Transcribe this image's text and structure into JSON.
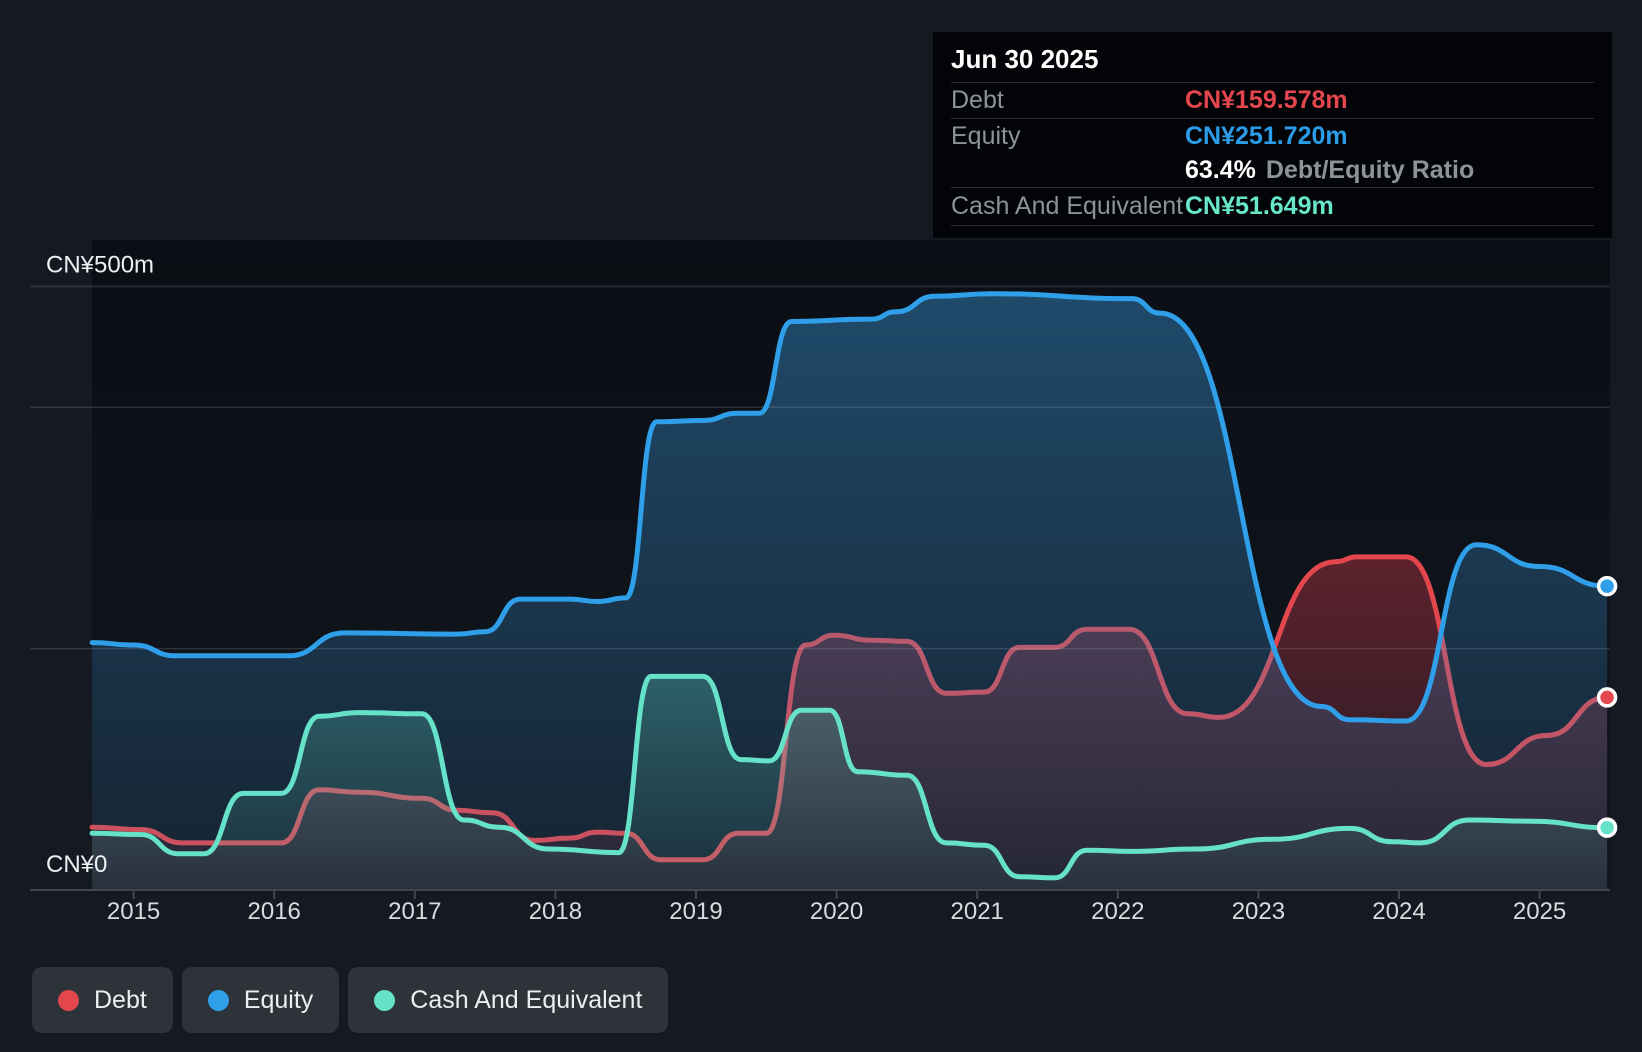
{
  "tooltip": {
    "date": "Jun 30 2025",
    "debt_label": "Debt",
    "debt_value": "CN¥159.578m",
    "equity_label": "Equity",
    "equity_value": "CN¥251.720m",
    "ratio_value": "63.4%",
    "ratio_label": "Debt/Equity Ratio",
    "cash_label": "Cash And Equivalent",
    "cash_value": "CN¥51.649m"
  },
  "legend": {
    "items": [
      {
        "name": "debt",
        "label": "Debt",
        "color": "#e3474d"
      },
      {
        "name": "equity",
        "label": "Equity",
        "color": "#2e9fe8"
      },
      {
        "name": "cash",
        "label": "Cash And Equivalent",
        "color": "#66e2c8"
      }
    ]
  },
  "chart_data": {
    "type": "area",
    "currency_unit": "CN¥ millions",
    "ylim": [
      0,
      500
    ],
    "y_axis_labels": {
      "top": "CN¥500m",
      "bottom": "CN¥0"
    },
    "gridline_values": [
      500,
      400,
      200
    ],
    "x_ticks": [
      "2015",
      "2016",
      "2017",
      "2018",
      "2019",
      "2020",
      "2021",
      "2022",
      "2023",
      "2024",
      "2025"
    ],
    "x_range_years": [
      2014.705,
      2025.48
    ],
    "legend_position": "bottom-left",
    "grid": true,
    "series": [
      {
        "name": "Debt",
        "color": "#e3474d",
        "end_label": "CN¥159.578m",
        "points": [
          [
            2014.705,
            52
          ],
          [
            2015.05,
            50
          ],
          [
            2015.35,
            39
          ],
          [
            2016.05,
            39
          ],
          [
            2016.32,
            83
          ],
          [
            2016.6,
            81
          ],
          [
            2017.05,
            76
          ],
          [
            2017.3,
            66
          ],
          [
            2017.55,
            64
          ],
          [
            2017.85,
            41
          ],
          [
            2018.1,
            43
          ],
          [
            2018.3,
            48
          ],
          [
            2018.5,
            47
          ],
          [
            2018.75,
            25
          ],
          [
            2019.05,
            25
          ],
          [
            2019.3,
            47
          ],
          [
            2019.5,
            47
          ],
          [
            2019.78,
            203
          ],
          [
            2019.98,
            211
          ],
          [
            2020.25,
            207
          ],
          [
            2020.5,
            206
          ],
          [
            2020.78,
            163
          ],
          [
            2021.05,
            164
          ],
          [
            2021.3,
            201
          ],
          [
            2021.55,
            201
          ],
          [
            2021.78,
            216
          ],
          [
            2022.08,
            216
          ],
          [
            2022.5,
            146
          ],
          [
            2022.72,
            143
          ],
          [
            2023.55,
            272
          ],
          [
            2023.7,
            276
          ],
          [
            2024.05,
            276
          ],
          [
            2024.62,
            104
          ],
          [
            2025.05,
            128
          ],
          [
            2025.48,
            159.578
          ]
        ]
      },
      {
        "name": "Equity",
        "color": "#2e9fe8",
        "end_label": "CN¥251.720m",
        "points": [
          [
            2014.705,
            205
          ],
          [
            2015.0,
            203
          ],
          [
            2015.3,
            194
          ],
          [
            2016.1,
            194
          ],
          [
            2016.5,
            213
          ],
          [
            2017.3,
            212
          ],
          [
            2017.5,
            214
          ],
          [
            2017.75,
            241
          ],
          [
            2018.1,
            241
          ],
          [
            2018.3,
            239
          ],
          [
            2018.5,
            242
          ],
          [
            2018.72,
            388
          ],
          [
            2019.05,
            389
          ],
          [
            2019.3,
            395
          ],
          [
            2019.45,
            395
          ],
          [
            2019.68,
            471
          ],
          [
            2020.25,
            473
          ],
          [
            2020.42,
            479
          ],
          [
            2020.7,
            492
          ],
          [
            2021.1,
            494
          ],
          [
            2022.1,
            490
          ],
          [
            2022.3,
            478
          ],
          [
            2023.45,
            152
          ],
          [
            2023.65,
            141
          ],
          [
            2024.05,
            140
          ],
          [
            2024.55,
            286
          ],
          [
            2025.0,
            268
          ],
          [
            2025.48,
            251.72
          ]
        ]
      },
      {
        "name": "Cash And Equivalent",
        "color": "#66e2c8",
        "end_label": "CN¥51.649m",
        "points": [
          [
            2014.705,
            47
          ],
          [
            2015.05,
            46
          ],
          [
            2015.32,
            30
          ],
          [
            2015.5,
            30
          ],
          [
            2015.78,
            80
          ],
          [
            2016.05,
            80
          ],
          [
            2016.32,
            144
          ],
          [
            2016.6,
            147
          ],
          [
            2017.05,
            146
          ],
          [
            2017.35,
            58
          ],
          [
            2017.6,
            52
          ],
          [
            2017.95,
            34
          ],
          [
            2018.45,
            31
          ],
          [
            2018.68,
            177
          ],
          [
            2019.05,
            177
          ],
          [
            2019.32,
            108
          ],
          [
            2019.52,
            107
          ],
          [
            2019.75,
            149
          ],
          [
            2019.95,
            149
          ],
          [
            2020.15,
            98
          ],
          [
            2020.5,
            95
          ],
          [
            2020.78,
            39
          ],
          [
            2021.05,
            37
          ],
          [
            2021.3,
            11
          ],
          [
            2021.55,
            10
          ],
          [
            2021.78,
            33
          ],
          [
            2022.1,
            32
          ],
          [
            2022.55,
            34
          ],
          [
            2023.1,
            42
          ],
          [
            2023.65,
            51
          ],
          [
            2023.95,
            40
          ],
          [
            2024.15,
            39
          ],
          [
            2024.5,
            58
          ],
          [
            2024.95,
            57
          ],
          [
            2025.48,
            51.649
          ]
        ]
      }
    ]
  }
}
